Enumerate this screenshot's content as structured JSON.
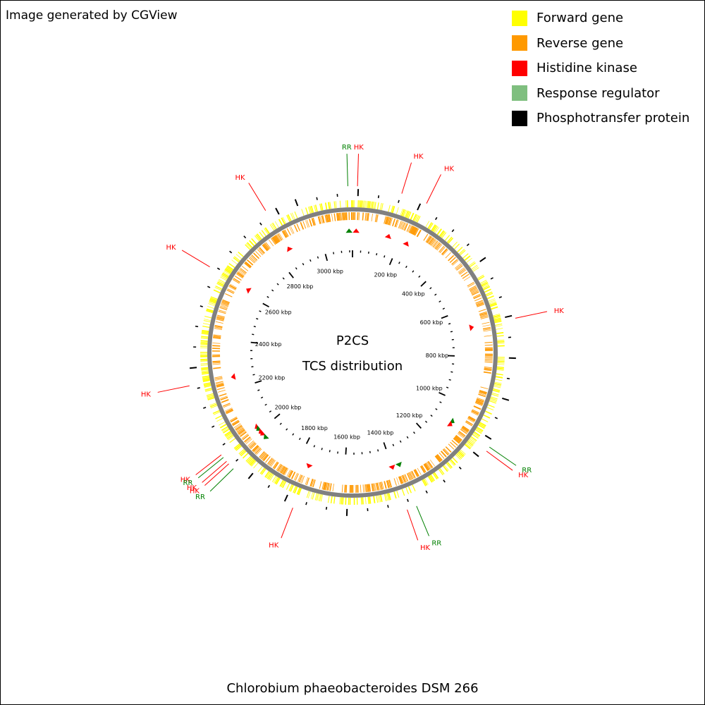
{
  "credit": "Image generated by CGView",
  "legend": [
    {
      "label": "Forward gene",
      "color": "#ffff00"
    },
    {
      "label": "Reverse gene",
      "color": "#ff9900"
    },
    {
      "label": "Histidine kinase",
      "color": "#ff0000"
    },
    {
      "label": "Response regulator",
      "color": "#7fbf7f"
    },
    {
      "label": "Phosphotransfer protein",
      "color": "#000000"
    }
  ],
  "footer": "Chlorobium phaeobacteroides DSM 266",
  "map": {
    "center_title": "P2CS",
    "center_subtitle": "TCS distribution",
    "genome_length_kbp": 3134,
    "tick_labels": [
      "200 kbp",
      "400 kbp",
      "600 kbp",
      "800 kbp",
      "1000 kbp",
      "1200 kbp",
      "1400 kbp",
      "1600 kbp",
      "1800 kbp",
      "2000 kbp",
      "2200 kbp",
      "2400 kbp",
      "2600 kbp",
      "2800 kbp",
      "3000 kbp"
    ],
    "tick_positions_kbp": [
      200,
      400,
      600,
      800,
      1000,
      1200,
      1400,
      1600,
      1800,
      2000,
      2200,
      2400,
      2600,
      2800,
      3000
    ],
    "features": [
      {
        "label": "RR",
        "type": "rr",
        "kbp": 3120
      },
      {
        "label": "HK",
        "type": "hk",
        "kbp": 15
      },
      {
        "label": "HK",
        "type": "hk",
        "kbp": 150
      },
      {
        "label": "HK",
        "type": "hk",
        "kbp": 230
      },
      {
        "label": "HK",
        "type": "hk",
        "kbp": 2860
      },
      {
        "label": "HK",
        "type": "hk",
        "kbp": 2620
      },
      {
        "label": "HK",
        "type": "hk",
        "kbp": 680
      },
      {
        "label": "HK",
        "type": "hk",
        "kbp": 2250
      },
      {
        "label": "RR",
        "type": "rr",
        "kbp": 1085
      },
      {
        "label": "HK",
        "type": "hk",
        "kbp": 1100
      },
      {
        "label": "HK",
        "type": "hk",
        "kbp": 2020
      },
      {
        "label": "RR",
        "type": "rr",
        "kbp": 2010
      },
      {
        "label": "HK",
        "type": "hk",
        "kbp": 1995
      },
      {
        "label": "HK",
        "type": "hk",
        "kbp": 1985
      },
      {
        "label": "RR",
        "type": "rr",
        "kbp": 1965
      },
      {
        "label": "HK",
        "type": "hk",
        "kbp": 1750
      },
      {
        "label": "HK",
        "type": "hk",
        "kbp": 1400
      },
      {
        "label": "RR",
        "type": "rr",
        "kbp": 1370
      }
    ]
  }
}
